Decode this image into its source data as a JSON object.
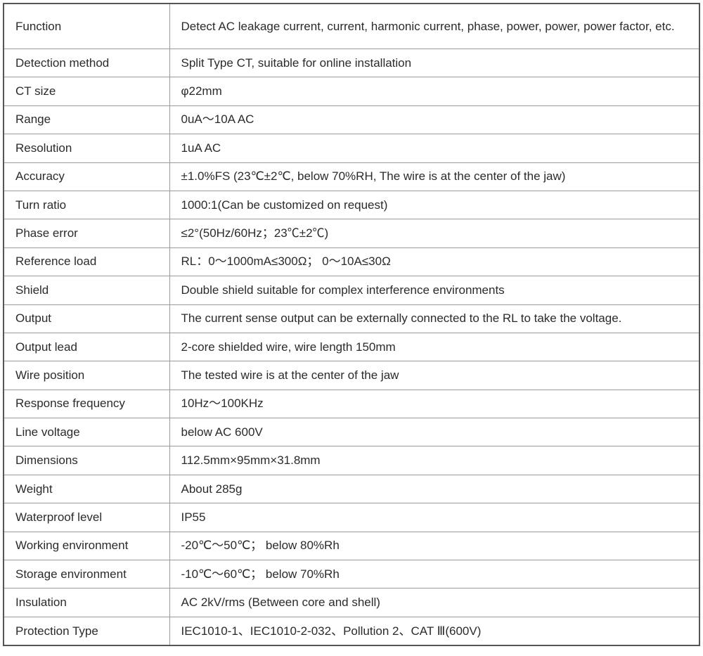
{
  "rows": [
    {
      "label": "Function",
      "value": "Detect AC leakage current, current, harmonic current, phase, power, power, power factor, etc."
    },
    {
      "label": "Detection method",
      "value": "Split Type CT, suitable for online installation"
    },
    {
      "label": "CT size",
      "value": "φ22mm"
    },
    {
      "label": "Range",
      "value": "0uA～10A AC"
    },
    {
      "label": "Resolution",
      "value": "1uA AC"
    },
    {
      "label": "Accuracy",
      "value": "±1.0%FS (23℃±2℃,  below 70%RH, The wire is at the center of the jaw)"
    },
    {
      "label": "Turn ratio",
      "value": "1000:1(Can be customized on request)"
    },
    {
      "label": "Phase error",
      "value": "≤2°(50Hz/60Hz；23℃±2℃)"
    },
    {
      "label": "Reference load",
      "value": "RL：0～1000mA≤300Ω；  0～10A≤30Ω"
    },
    {
      "label": "Shield",
      "value": "Double shield suitable for complex interference environments"
    },
    {
      "label": "Output",
      "value": "The current sense output can be externally connected to the RL to take the voltage."
    },
    {
      "label": "Output lead",
      "value": "2-core shielded wire, wire length 150mm"
    },
    {
      "label": "Wire position",
      "value": "The tested wire is at the center of the jaw"
    },
    {
      "label": "Response frequency",
      "value": "10Hz～100KHz"
    },
    {
      "label": "Line voltage",
      "value": "below AC 600V"
    },
    {
      "label": "Dimensions",
      "value": "112.5mm×95mm×31.8mm"
    },
    {
      "label": "Weight",
      "value": "About 285g"
    },
    {
      "label": "Waterproof level",
      "value": "IP55"
    },
    {
      "label": "Working environment",
      "value": "-20℃～50℃；  below 80%Rh"
    },
    {
      "label": "Storage environment",
      "value": "-10℃～60℃；  below 70%Rh"
    },
    {
      "label": "Insulation",
      "value": "AC 2kV/rms (Between core and shell)"
    },
    {
      "label": "Protection Type",
      "value": "IEC1010-1、IEC1010-2-032、Pollution  2、CAT Ⅲ(600V)"
    }
  ]
}
